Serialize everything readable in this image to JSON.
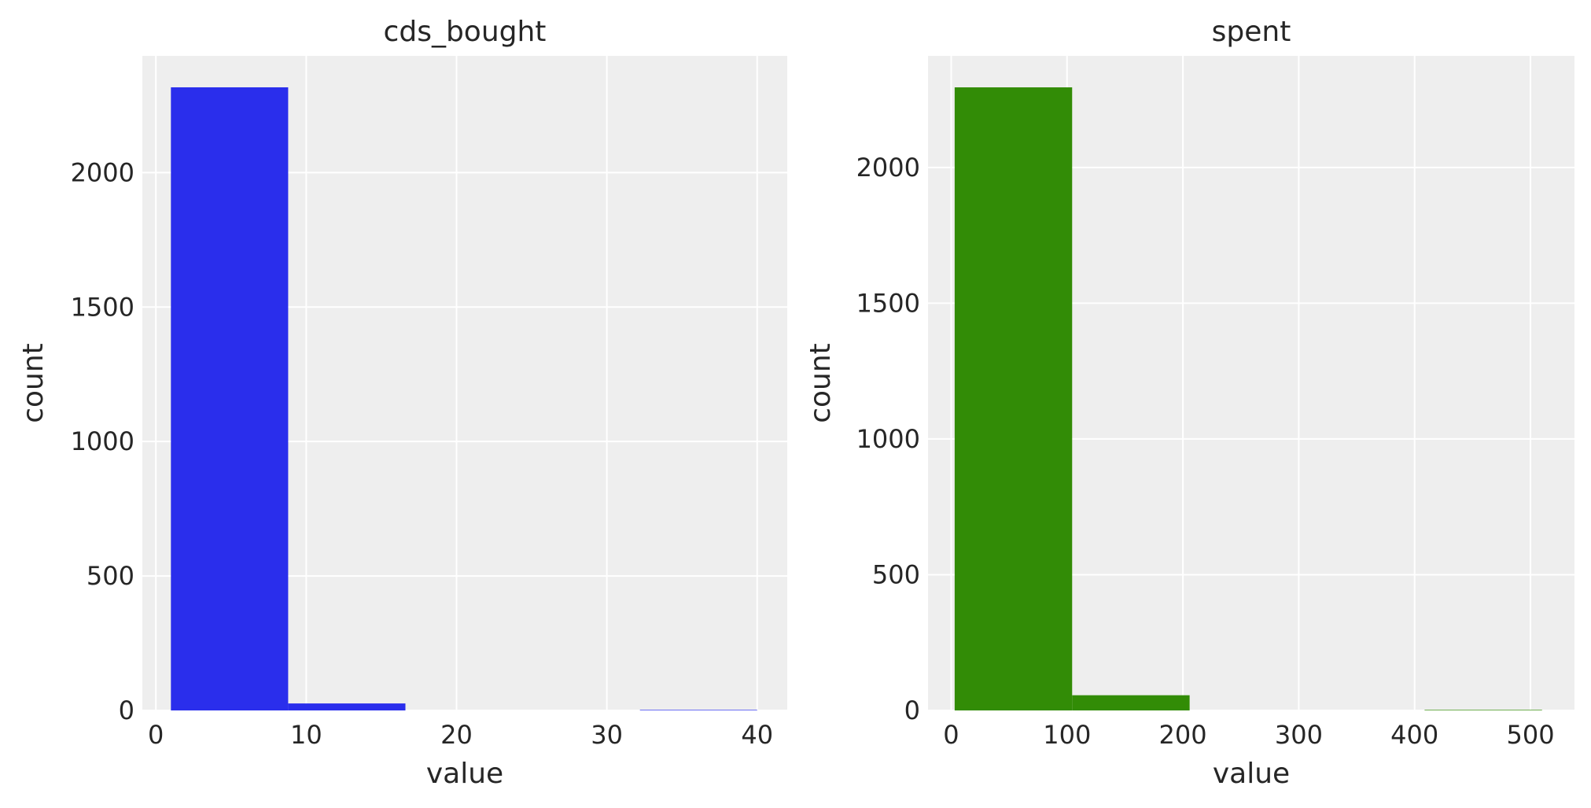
{
  "chart_data": [
    {
      "type": "bar",
      "title": "cds_bought",
      "xlabel": "value",
      "ylabel": "count",
      "color": "#2a2eec",
      "bin_edges": [
        1,
        8.8,
        16.6,
        24.4,
        32.2,
        40
      ],
      "values": [
        2317,
        26,
        0,
        0,
        2
      ],
      "xlim": [
        -0.9,
        42
      ],
      "ylim": [
        0,
        2434
      ],
      "xticks": [
        0,
        10,
        20,
        30,
        40
      ],
      "yticks": [
        0,
        500,
        1000,
        1500,
        2000
      ],
      "grid": true,
      "background": "#eeeeee"
    },
    {
      "type": "bar",
      "title": "spent",
      "xlabel": "value",
      "ylabel": "count",
      "color": "#328c06",
      "bin_edges": [
        3,
        104.4,
        205.8,
        307.2,
        408.6,
        510
      ],
      "values": [
        2295,
        56,
        0,
        0,
        2
      ],
      "xlim": [
        -20,
        538
      ],
      "ylim": [
        0,
        2411
      ],
      "xticks": [
        0,
        100,
        200,
        300,
        400,
        500
      ],
      "yticks": [
        0,
        500,
        1000,
        1500,
        2000
      ],
      "grid": true,
      "background": "#eeeeee"
    }
  ]
}
